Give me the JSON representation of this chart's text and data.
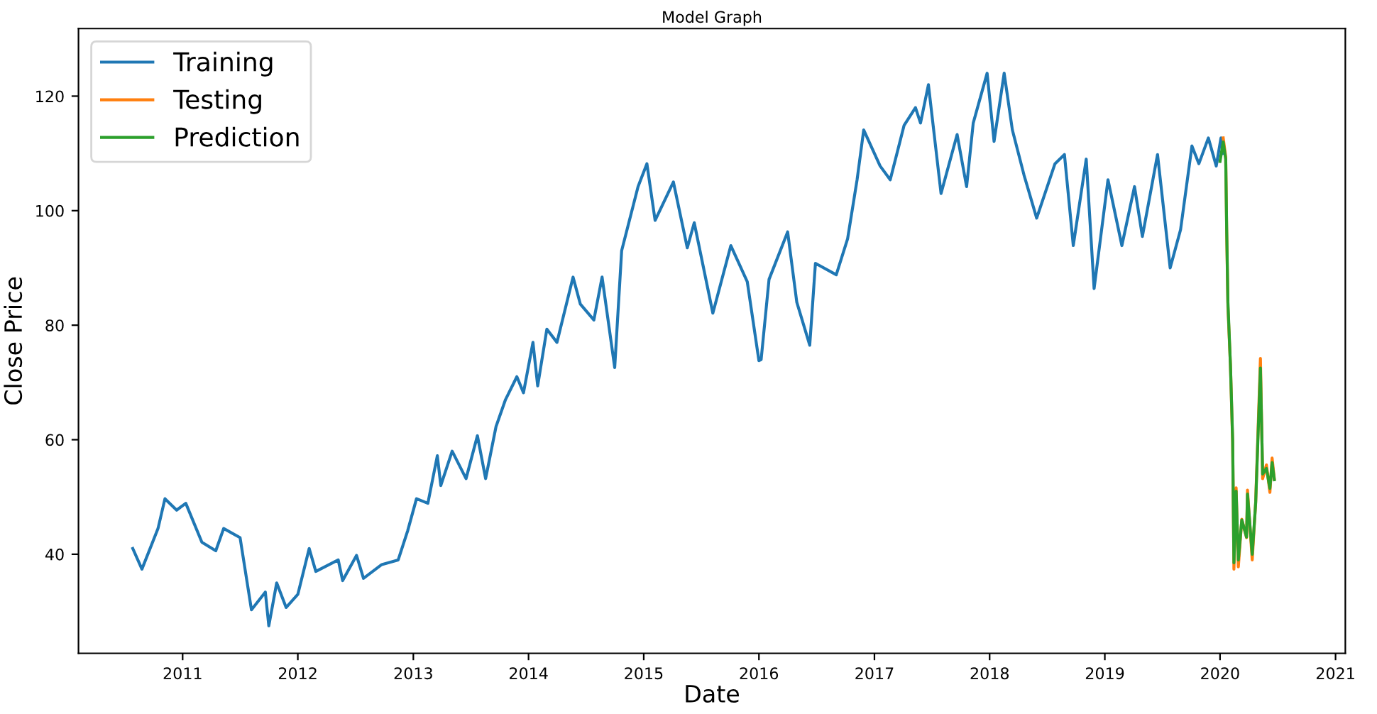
{
  "chart_data": {
    "type": "line",
    "title": "Model Graph",
    "xlabel": "Date",
    "ylabel": "Close Price",
    "xlim": [
      "2010-02-05",
      "2021-02-01"
    ],
    "xticks": [
      {
        "value": "2011-01-01",
        "label": "2011"
      },
      {
        "value": "2012-01-01",
        "label": "2012"
      },
      {
        "value": "2013-01-01",
        "label": "2013"
      },
      {
        "value": "2014-01-01",
        "label": "2014"
      },
      {
        "value": "2015-01-01",
        "label": "2015"
      },
      {
        "value": "2016-01-01",
        "label": "2016"
      },
      {
        "value": "2017-01-01",
        "label": "2017"
      },
      {
        "value": "2018-01-01",
        "label": "2018"
      },
      {
        "value": "2019-01-01",
        "label": "2019"
      },
      {
        "value": "2020-01-01",
        "label": "2020"
      },
      {
        "value": "2021-01-01",
        "label": "2021"
      }
    ],
    "ylim": [
      22.7,
      131.8
    ],
    "yticks": [
      40,
      60,
      80,
      100,
      120
    ],
    "grid": false,
    "legend": "top left",
    "line_style": "solid",
    "marker": "none",
    "series": [
      {
        "name": "Training",
        "color": "#1f77b4",
        "x": [
          "2010-07-27",
          "2010-08-25",
          "2010-10-15",
          "2010-11-06",
          "2010-12-13",
          "2011-01-11",
          "2011-03-03",
          "2011-04-16",
          "2011-05-11",
          "2011-07-02",
          "2011-08-07",
          "2011-09-20",
          "2011-10-01",
          "2011-10-26",
          "2011-11-25",
          "2012-01-01",
          "2012-02-06",
          "2012-02-27",
          "2012-05-08",
          "2012-05-22",
          "2012-07-05",
          "2012-07-27",
          "2012-09-23",
          "2012-11-14",
          "2012-12-14",
          "2013-01-11",
          "2013-02-16",
          "2013-03-18",
          "2013-03-29",
          "2013-05-04",
          "2013-06-17",
          "2013-07-23",
          "2013-08-18",
          "2013-09-20",
          "2013-10-20",
          "2013-11-25",
          "2013-12-16",
          "2014-01-15",
          "2014-01-30",
          "2014-02-28",
          "2014-04-01",
          "2014-05-22",
          "2014-06-14",
          "2014-07-27",
          "2014-08-22",
          "2014-10-01",
          "2014-10-23",
          "2014-12-14",
          "2015-01-11",
          "2015-02-06",
          "2015-04-05",
          "2015-05-19",
          "2015-06-10",
          "2015-08-08",
          "2015-10-04",
          "2015-11-25",
          "2016-01-01",
          "2016-01-08",
          "2016-02-02",
          "2016-04-01",
          "2016-04-30",
          "2016-06-10",
          "2016-06-28",
          "2016-09-02",
          "2016-10-08",
          "2016-11-07",
          "2016-11-28",
          "2017-01-19",
          "2017-02-20",
          "2017-04-05",
          "2017-05-11",
          "2017-05-27",
          "2017-06-21",
          "2017-07-31",
          "2017-09-20",
          "2017-10-20",
          "2017-11-10",
          "2017-12-24",
          "2018-01-15",
          "2018-02-16",
          "2018-03-14",
          "2018-04-20",
          "2018-05-30",
          "2018-07-27",
          "2018-08-26",
          "2018-09-23",
          "2018-11-03",
          "2018-11-28",
          "2019-01-11",
          "2019-02-24",
          "2019-04-05",
          "2019-04-30",
          "2019-06-17",
          "2019-07-27",
          "2019-08-29",
          "2019-10-04",
          "2019-10-26",
          "2019-11-25",
          "2019-12-20",
          "2020-01-04",
          "2020-01-11"
        ],
        "values": [
          41,
          37.4,
          44.5,
          49.7,
          47.7,
          48.9,
          42.1,
          40.6,
          44.5,
          42.9,
          30.3,
          33.4,
          27.5,
          35,
          30.7,
          33,
          41,
          37,
          39,
          35.4,
          39.8,
          35.8,
          38.2,
          39,
          44.1,
          49.7,
          48.9,
          57.2,
          52,
          58,
          53.2,
          60.7,
          53.2,
          62.3,
          67,
          71,
          68.2,
          77,
          69.4,
          79.3,
          77,
          88.4,
          83.7,
          80.9,
          88.4,
          72.6,
          93,
          104.2,
          108.2,
          98.3,
          105,
          93.5,
          97.9,
          82.1,
          93.9,
          87.6,
          73.8,
          74,
          88,
          96.3,
          84,
          76.5,
          90.8,
          88.8,
          95.1,
          105.4,
          114.1,
          107.8,
          105.4,
          114.9,
          118,
          115.3,
          122,
          103,
          113.3,
          104.2,
          115.3,
          124,
          112.1,
          124,
          114.1,
          106.2,
          98.7,
          108.2,
          109.8,
          93.9,
          109,
          86.4,
          105.4,
          93.9,
          104.2,
          95.5,
          109.8,
          90,
          96.7,
          111.3,
          108.2,
          112.7,
          107.8,
          112.7,
          110
        ]
      },
      {
        "name": "Testing",
        "color": "#ff7f0e",
        "x": [
          "2020-01-11",
          "2020-01-19",
          "2020-01-22",
          "2020-01-26",
          "2020-02-03",
          "2020-02-10",
          "2020-02-14",
          "2020-02-21",
          "2020-02-28",
          "2020-03-10",
          "2020-03-25",
          "2020-03-28",
          "2020-04-12",
          "2020-04-23",
          "2020-05-08",
          "2020-05-15",
          "2020-05-27",
          "2020-06-07",
          "2020-06-14",
          "2020-06-21"
        ],
        "values": [
          112.7,
          109.4,
          96.7,
          83.2,
          73,
          59.5,
          37.4,
          51.6,
          37.8,
          46.1,
          42.9,
          51.2,
          39,
          49.2,
          74.2,
          53.2,
          55.6,
          50.8,
          56.8,
          53.2
        ]
      },
      {
        "name": "Prediction",
        "color": "#2ca02c",
        "x": [
          "2020-01-01",
          "2020-01-11",
          "2020-01-19",
          "2020-01-22",
          "2020-01-26",
          "2020-02-03",
          "2020-02-10",
          "2020-02-14",
          "2020-02-21",
          "2020-02-28",
          "2020-03-10",
          "2020-03-25",
          "2020-03-28",
          "2020-04-12",
          "2020-04-23",
          "2020-05-08",
          "2020-05-15",
          "2020-05-27",
          "2020-06-07",
          "2020-06-14",
          "2020-06-21"
        ],
        "values": [
          108.6,
          112,
          109,
          97,
          84,
          73,
          60,
          38.5,
          51,
          39,
          46,
          43,
          50.5,
          40,
          49,
          72.5,
          54,
          55,
          51.5,
          56,
          53
        ]
      }
    ]
  }
}
